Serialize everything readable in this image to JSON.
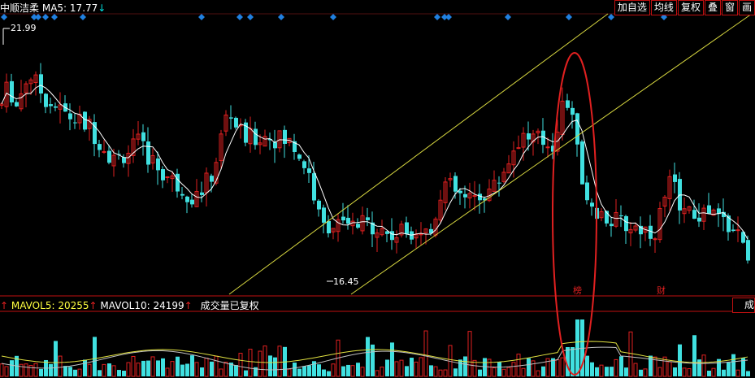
{
  "header": {
    "stock_name": "中顺洁柔",
    "ma5_label": "MA5:",
    "ma5_value": "17.77",
    "ma5_arrow": "↓"
  },
  "toolbar": [
    "加自选",
    "均线",
    "复权",
    "叠",
    "窗",
    "画"
  ],
  "price_panel": {
    "high_label": "21.99",
    "low_label": "16.45",
    "event_markers": [
      "榜",
      "财"
    ]
  },
  "volume_header": {
    "mavol5_label": "MAVOL5:",
    "mavol5_value": "20255",
    "mavol10_label": "MAVOL10:",
    "mavol10_value": "24199",
    "note": "成交量已复权",
    "corner_text": "成"
  },
  "colors": {
    "background": "#000000",
    "up_candle": "#e02020",
    "down_candle": "#40e0e0",
    "ma_line": "#ffffff",
    "channel_line": "#d8d840",
    "marker_diamond": "#2080e0",
    "highlight_ellipse": "#e02020"
  },
  "chart_data": {
    "type": "candlestick",
    "y_range_price": [
      16.0,
      22.5
    ],
    "high_price": 21.99,
    "low_price": 16.45,
    "mavol5": 20255,
    "mavol10": 24199
  }
}
